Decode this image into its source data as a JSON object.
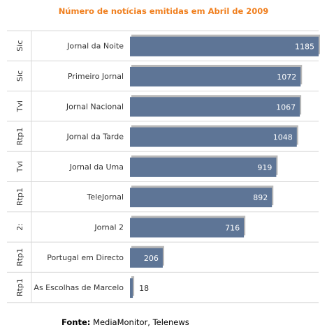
{
  "chart_data": {
    "type": "bar",
    "orientation": "horizontal",
    "title": "Número de notícias emitidas em Abril de 2009",
    "groups": [
      "Sic",
      "Sic",
      "Tvi",
      "Rtp1",
      "Tvi",
      "Rtp1",
      "2:",
      "Rtp1",
      "Rtp1"
    ],
    "categories": [
      "Jornal da Noite",
      "Primeiro Jornal",
      "Jornal Nacional",
      "Jornal da Tarde",
      "Jornal da Uma",
      "TeleJornal",
      "Jornal 2",
      "Portugal em Directo",
      "As Escolhas de Marcelo"
    ],
    "values": [
      1185,
      1072,
      1067,
      1048,
      919,
      892,
      716,
      206,
      18
    ],
    "xlim": [
      0,
      1185
    ],
    "grid": true,
    "legend": "none"
  },
  "source": {
    "label": "Fonte:",
    "text": "MediaMonitor, Telenews"
  },
  "colors": {
    "bar": "#5e7596",
    "bar_shadow": "#b9b9b9",
    "title": "#f07f1e",
    "grid": "#d8d8d8",
    "value_inside": "#ffffff",
    "value_outside": "#333333"
  }
}
